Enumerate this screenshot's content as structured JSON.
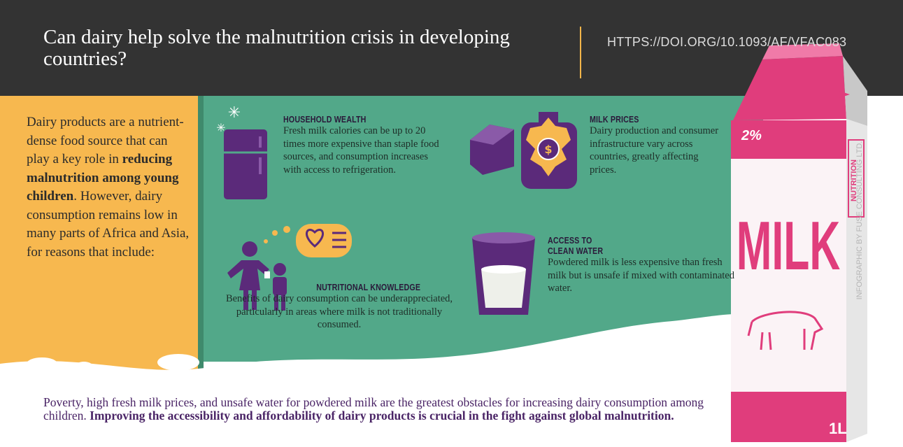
{
  "header": {
    "title": "Can dairy help solve the malnutrition crisis in developing countries?",
    "doi": "HTTPS://DOI.ORG/10.1093/AF/VFAC083"
  },
  "intro": {
    "parts": [
      "Dairy products are a nutrient-dense food source that can play a key role in ",
      "reducing malnutrition among young children",
      ". However, dairy consumption remains low in many parts of Africa and Asia, for reasons that include:"
    ]
  },
  "factors": [
    {
      "heading": "HOUSEHOLD WEALTH",
      "body": "Fresh milk calories can be up to 20 times more expensive than staple food sources, and consumption increases with access to refrigeration."
    },
    {
      "heading": "MILK PRICES",
      "body": "Dairy production and consumer infrastructure vary across countries, greatly affecting prices."
    },
    {
      "heading": "NUTRITIONAL KNOWLEDGE",
      "body": "Benefits of dairy consumption can be underappreciated, particularly in areas where milk is not traditionally consumed."
    },
    {
      "heading": "ACCESS TO CLEAN WATER",
      "body": "Powdered milk is less expensive than fresh milk but is unsafe if mixed with contaminated water."
    }
  ],
  "icon_labels": {
    "price": "$"
  },
  "carton": {
    "fat": "2%",
    "panel": "NUTRITION",
    "brand": "MILK",
    "volume": "1L",
    "credit": "INFOGRAPHIC BY FUSE CONSULTING LTD."
  },
  "footer": {
    "parts": [
      "Poverty, high fresh milk prices, and unsafe water for powdered milk are the greatest obstacles for increasing dairy consumption among children. ",
      "Improving the accessibility and affordability of dairy products is crucial in the fight against global malnutrition."
    ]
  }
}
